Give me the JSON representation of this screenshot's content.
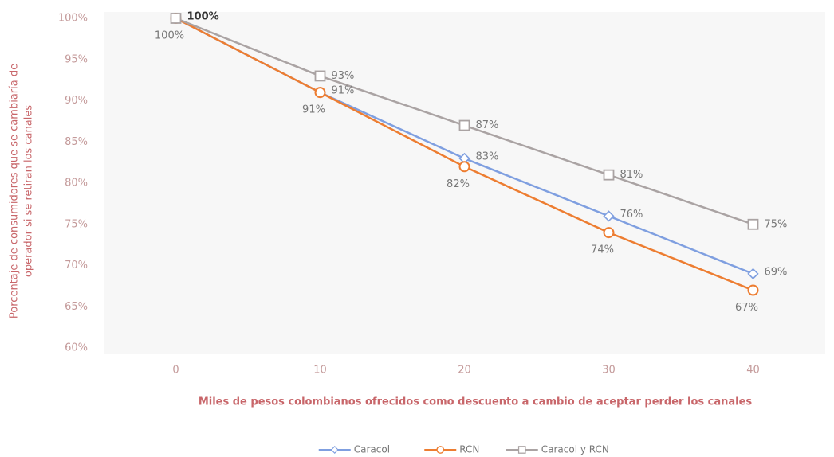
{
  "chart_data": {
    "type": "line",
    "x_label": "Miles de pesos colombianos ofrecidos como descuento a cambio de aceptar perder los canales",
    "y_label": [
      "Porcentaje de consumidores que se cambiaría de",
      "operador si se retiran los canales"
    ],
    "x": [
      0,
      10,
      20,
      30,
      40
    ],
    "xlim": [
      -5,
      45
    ],
    "xticks": [
      0,
      10,
      20,
      30,
      40
    ],
    "ylim": [
      60,
      100
    ],
    "yticks": [
      {
        "value": 60,
        "label": "60%"
      },
      {
        "value": 65,
        "label": "65%"
      },
      {
        "value": 70,
        "label": "70%"
      },
      {
        "value": 75,
        "label": "75%"
      },
      {
        "value": 80,
        "label": "80%"
      },
      {
        "value": 85,
        "label": "85%"
      },
      {
        "value": 90,
        "label": "90%"
      },
      {
        "value": 95,
        "label": "95%"
      },
      {
        "value": 100,
        "label": "100%"
      }
    ],
    "series": [
      {
        "name": "Caracol",
        "color": "#7f9fe0",
        "marker": "diamond",
        "values": [
          100,
          91,
          83,
          76,
          69
        ],
        "value_labels": [
          "100%",
          "91%",
          "83%",
          "76%",
          "69%"
        ]
      },
      {
        "name": "RCN",
        "color": "#ed7d31",
        "marker": "circle",
        "values": [
          100,
          91,
          82,
          74,
          67
        ],
        "value_labels": [
          "100%",
          "91%",
          "82%",
          "74%",
          "67%"
        ]
      },
      {
        "name": "Caracol y RCN",
        "color": "#aaa3a3",
        "marker": "square",
        "values": [
          100,
          93,
          87,
          81,
          75
        ],
        "value_labels": [
          null,
          "93%",
          "87%",
          "81%",
          "75%"
        ]
      }
    ],
    "legend": "bottom"
  }
}
